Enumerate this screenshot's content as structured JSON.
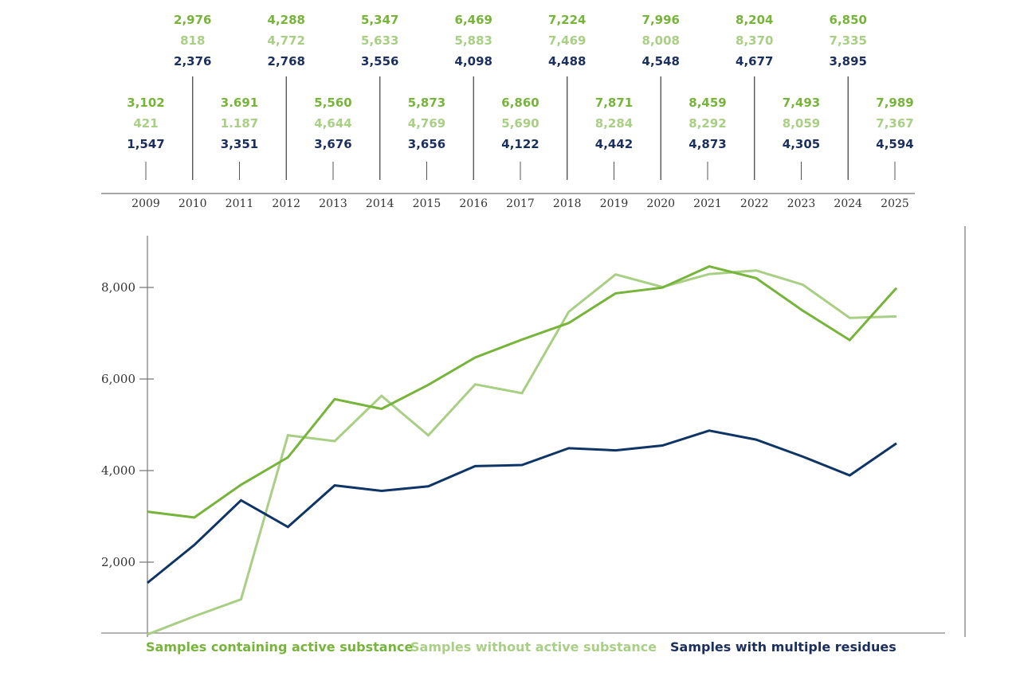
{
  "chart_data": {
    "type": "line",
    "title": "",
    "xlabel": "",
    "ylabel": "",
    "x": [
      "2009",
      "2010",
      "2011",
      "2012",
      "2013",
      "2014",
      "2015",
      "2016",
      "2017",
      "2018",
      "2019",
      "2020",
      "2021",
      "2022",
      "2023",
      "2024",
      "2025"
    ],
    "ylim": [
      0,
      9000
    ],
    "yticks": [
      2000,
      4000,
      6000,
      8000
    ],
    "ytick_labels": [
      "2,000",
      "4,000",
      "6,000",
      "8,000"
    ],
    "grid": false,
    "legend_position": "bottom",
    "series": [
      {
        "name": "Samples containing active substance",
        "color": "#76b43a",
        "values": [
          3102,
          2976,
          3691,
          4288,
          5560,
          5347,
          5873,
          6469,
          6860,
          7224,
          7871,
          7996,
          8459,
          8204,
          7493,
          6850,
          7989
        ],
        "labels": [
          "3,102",
          "2,976",
          "3.691",
          "4,288",
          "5,560",
          "5,347",
          "5,873",
          "6,469",
          "6,860",
          "7,224",
          "7,871",
          "7,996",
          "8,459",
          "8,204",
          "7,493",
          "6,850",
          "7,989"
        ]
      },
      {
        "name": "Samples without active substance",
        "color": "#a9cf85",
        "values": [
          421,
          818,
          1187,
          4772,
          4644,
          5633,
          4769,
          5883,
          5690,
          7469,
          8284,
          8008,
          8292,
          8370,
          8059,
          7335,
          7367
        ],
        "labels": [
          "421",
          "818",
          "1.187",
          "4,772",
          "4,644",
          "5,633",
          "4,769",
          "5,883",
          "5,690",
          "7,469",
          "8,284",
          "8,008",
          "8,292",
          "8,370",
          "8,059",
          "7,335",
          "7,367"
        ]
      },
      {
        "name": "Samples with multiple residues",
        "color": "#1b2f5e",
        "line_color": "#0f3566",
        "values": [
          1547,
          2376,
          3351,
          2768,
          3676,
          3556,
          3656,
          4098,
          4122,
          4488,
          4442,
          4548,
          4873,
          4677,
          4305,
          3895,
          4594
        ],
        "labels": [
          "1,547",
          "2,376",
          "3,351",
          "2,768",
          "3,676",
          "3,556",
          "3,656",
          "4,098",
          "4,122",
          "4,488",
          "4,442",
          "4,548",
          "4,873",
          "4,677",
          "4,305",
          "3,895",
          "4,594"
        ]
      }
    ]
  }
}
